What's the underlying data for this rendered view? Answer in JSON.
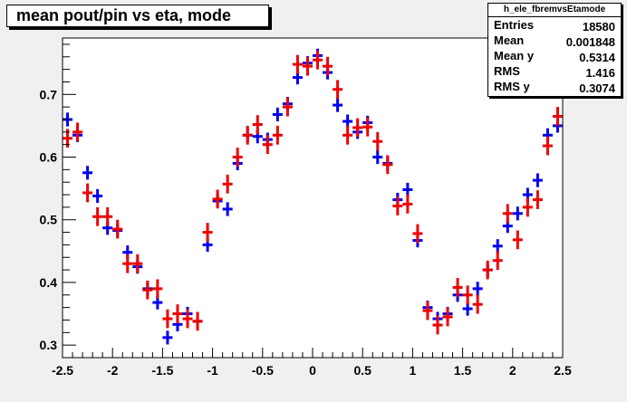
{
  "colors": {
    "series1": "#0000ee",
    "series2": "#ee0000",
    "frame": "#000000",
    "background": "#f0f0f0",
    "plot_background": "#ffffff"
  },
  "header": {
    "title": "mean pout/pin vs eta, mode"
  },
  "stats": {
    "name": "h_ele_fbremvsEtamode",
    "rows": [
      {
        "label": "Entries",
        "value": "18580"
      },
      {
        "label": "Mean",
        "value": "0.001848"
      },
      {
        "label": "Mean y",
        "value": "0.5314"
      },
      {
        "label": "RMS",
        "value": "1.416"
      },
      {
        "label": "RMS y",
        "value": "0.3074"
      }
    ]
  },
  "chart_data": {
    "type": "scatter",
    "title": "mean pout/pin vs eta, mode",
    "xlim": [
      -2.5,
      2.5
    ],
    "ylim": [
      0.28,
      0.79
    ],
    "xticks": [
      "-2.5",
      "-2",
      "-1.5",
      "-1",
      "-0.5",
      "0",
      "0.5",
      "1",
      "1.5",
      "2",
      "2.5"
    ],
    "yticks": [
      "0.3",
      "0.4",
      "0.5",
      "0.6",
      "0.7"
    ],
    "grid": false,
    "bin_width": 0.1,
    "series": [
      {
        "color": "#0000ee",
        "x": [
          -2.45,
          -2.35,
          -2.25,
          -2.15,
          -2.05,
          -1.95,
          -1.85,
          -1.75,
          -1.65,
          -1.55,
          -1.45,
          -1.35,
          -1.25,
          -1.15,
          -1.05,
          -0.95,
          -0.85,
          -0.75,
          -0.65,
          -0.55,
          -0.45,
          -0.35,
          -0.25,
          -0.15,
          -0.05,
          0.05,
          0.15,
          0.25,
          0.35,
          0.45,
          0.55,
          0.65,
          0.75,
          0.85,
          0.95,
          1.05,
          1.15,
          1.25,
          1.35,
          1.45,
          1.55,
          1.65,
          1.75,
          1.85,
          1.95,
          2.05,
          2.15,
          2.25,
          2.35,
          2.45
        ],
        "y": [
          0.66,
          0.635,
          0.575,
          0.538,
          0.487,
          0.483,
          0.448,
          0.425,
          0.39,
          0.368,
          0.312,
          0.333,
          0.35,
          0.338,
          0.46,
          0.53,
          0.517,
          0.59,
          0.635,
          0.633,
          0.628,
          0.668,
          0.685,
          0.727,
          0.75,
          0.762,
          0.735,
          0.683,
          0.657,
          0.64,
          0.655,
          0.6,
          0.59,
          0.532,
          0.548,
          0.467,
          0.36,
          0.342,
          0.35,
          0.38,
          0.358,
          0.39,
          0.42,
          0.458,
          0.49,
          0.51,
          0.54,
          0.563,
          0.635,
          0.65
        ],
        "yerr": [
          0.011,
          0.011,
          0.011,
          0.011,
          0.011,
          0.011,
          0.011,
          0.011,
          0.011,
          0.011,
          0.011,
          0.011,
          0.011,
          0.011,
          0.011,
          0.011,
          0.011,
          0.011,
          0.011,
          0.011,
          0.011,
          0.011,
          0.011,
          0.011,
          0.011,
          0.011,
          0.011,
          0.011,
          0.011,
          0.011,
          0.011,
          0.011,
          0.011,
          0.011,
          0.011,
          0.011,
          0.011,
          0.011,
          0.011,
          0.011,
          0.011,
          0.011,
          0.011,
          0.011,
          0.011,
          0.011,
          0.011,
          0.011,
          0.011,
          0.011
        ]
      },
      {
        "color": "#ee0000",
        "x": [
          -2.45,
          -2.35,
          -2.25,
          -2.15,
          -2.05,
          -1.95,
          -1.85,
          -1.75,
          -1.65,
          -1.55,
          -1.45,
          -1.35,
          -1.25,
          -1.15,
          -1.05,
          -0.95,
          -0.85,
          -0.75,
          -0.65,
          -0.55,
          -0.45,
          -0.35,
          -0.25,
          -0.15,
          -0.05,
          0.05,
          0.15,
          0.25,
          0.35,
          0.45,
          0.55,
          0.65,
          0.75,
          0.85,
          0.95,
          1.05,
          1.15,
          1.25,
          1.35,
          1.45,
          1.55,
          1.65,
          1.75,
          1.85,
          1.95,
          2.05,
          2.15,
          2.25,
          2.35,
          2.45
        ],
        "y": [
          0.63,
          0.64,
          0.543,
          0.505,
          0.505,
          0.485,
          0.43,
          0.43,
          0.388,
          0.39,
          0.342,
          0.35,
          0.342,
          0.338,
          0.48,
          0.533,
          0.557,
          0.6,
          0.635,
          0.652,
          0.62,
          0.635,
          0.68,
          0.748,
          0.745,
          0.755,
          0.745,
          0.708,
          0.635,
          0.647,
          0.648,
          0.625,
          0.588,
          0.522,
          0.525,
          0.478,
          0.355,
          0.332,
          0.345,
          0.392,
          0.38,
          0.365,
          0.42,
          0.435,
          0.51,
          0.468,
          0.52,
          0.532,
          0.618,
          0.665
        ],
        "yerr": [
          0.015,
          0.015,
          0.015,
          0.015,
          0.015,
          0.015,
          0.015,
          0.015,
          0.015,
          0.015,
          0.015,
          0.015,
          0.015,
          0.015,
          0.015,
          0.015,
          0.015,
          0.015,
          0.015,
          0.015,
          0.015,
          0.015,
          0.015,
          0.015,
          0.015,
          0.015,
          0.015,
          0.015,
          0.015,
          0.015,
          0.015,
          0.015,
          0.015,
          0.015,
          0.015,
          0.015,
          0.015,
          0.015,
          0.015,
          0.015,
          0.015,
          0.015,
          0.015,
          0.015,
          0.015,
          0.015,
          0.015,
          0.015,
          0.015,
          0.015
        ]
      }
    ]
  }
}
